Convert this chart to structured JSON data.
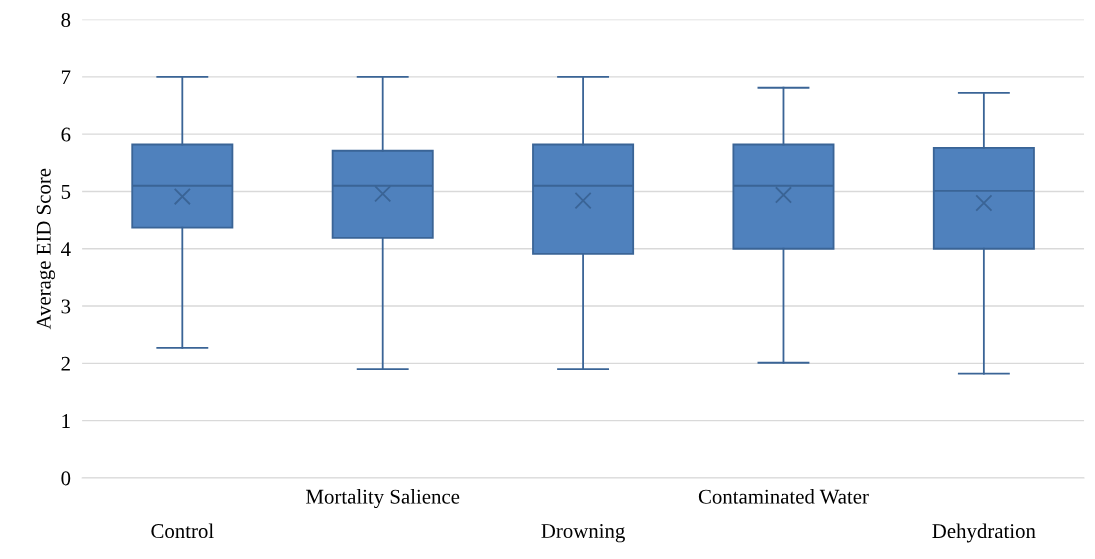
{
  "chart_data": {
    "type": "box",
    "ylabel": "Average EID Score",
    "categories": [
      "Control",
      "Mortality Salience",
      "Drowning",
      "Contaminated Water",
      "Dehydration"
    ],
    "boxes": [
      {
        "low": 2.27,
        "q1": 4.37,
        "median": 5.1,
        "q3": 5.82,
        "high": 7.0,
        "mean": 4.91
      },
      {
        "low": 1.9,
        "q1": 4.19,
        "median": 5.1,
        "q3": 5.71,
        "high": 7.0,
        "mean": 4.96
      },
      {
        "low": 1.9,
        "q1": 3.91,
        "median": 5.1,
        "q3": 5.82,
        "high": 7.0,
        "mean": 4.84
      },
      {
        "low": 2.01,
        "q1": 4.0,
        "median": 5.1,
        "q3": 5.82,
        "high": 6.81,
        "mean": 4.94
      },
      {
        "low": 1.82,
        "q1": 4.0,
        "median": 5.01,
        "q3": 5.76,
        "high": 6.72,
        "mean": 4.8
      }
    ],
    "color": "#4f81bd",
    "ylim": [
      0,
      8
    ],
    "yticks": [
      0,
      1,
      2,
      3,
      4,
      5,
      6,
      7,
      8
    ],
    "grid": "y"
  }
}
